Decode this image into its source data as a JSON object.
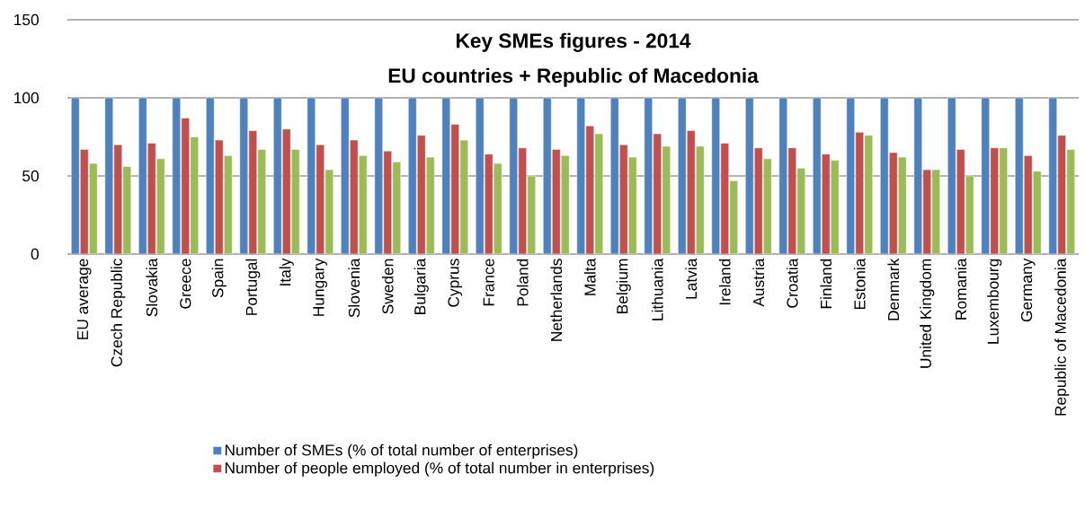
{
  "chart_data": {
    "type": "bar",
    "title": "Key SMEs figures - 2014",
    "subtitle": "EU countries + Republic of Macedonia",
    "categories": [
      "EU average",
      "Czech Republic",
      "Slovakia",
      "Greece",
      "Spain",
      "Portugal",
      "Italy",
      "Hungary",
      "Slovenia",
      "Sweden",
      "Bulgaria",
      "Cyprus",
      "France",
      "Poland",
      "Netherlands",
      "Malta",
      "Belgium",
      "Lithuania",
      "Latvia",
      "Ireland",
      "Austria",
      "Croatia",
      "Finland",
      "Estonia",
      "Denmark",
      "United Kingdom",
      "Romania",
      "Luxembourg",
      "Germany",
      "Republic of Macedonia"
    ],
    "series": [
      {
        "name": "Number of SMEs (% of total number of enterprises)",
        "color": "#4f81bd",
        "values": [
          100,
          100,
          100,
          100,
          100,
          100,
          100,
          100,
          100,
          100,
          100,
          100,
          100,
          100,
          100,
          100,
          100,
          100,
          100,
          100,
          100,
          100,
          100,
          100,
          100,
          100,
          100,
          100,
          100,
          100
        ]
      },
      {
        "name": "Number of people employed (% of total number in enterprises)",
        "color": "#c0504d",
        "values": [
          67,
          70,
          71,
          87,
          73,
          79,
          80,
          70,
          73,
          66,
          76,
          83,
          64,
          68,
          67,
          82,
          70,
          77,
          79,
          71,
          68,
          68,
          64,
          78,
          65,
          54,
          67,
          68,
          63,
          76
        ]
      },
      {
        "color": "#9bbb59",
        "values": [
          58,
          56,
          61,
          75,
          63,
          67,
          67,
          54,
          63,
          59,
          62,
          73,
          58,
          50,
          63,
          77,
          62,
          69,
          69,
          47,
          61,
          55,
          60,
          76,
          62,
          54,
          50,
          68,
          53,
          67
        ]
      }
    ],
    "ylim": [
      0,
      150
    ],
    "yticks": [
      0,
      50,
      100,
      150
    ],
    "grid": "y",
    "legend": "bottom"
  }
}
